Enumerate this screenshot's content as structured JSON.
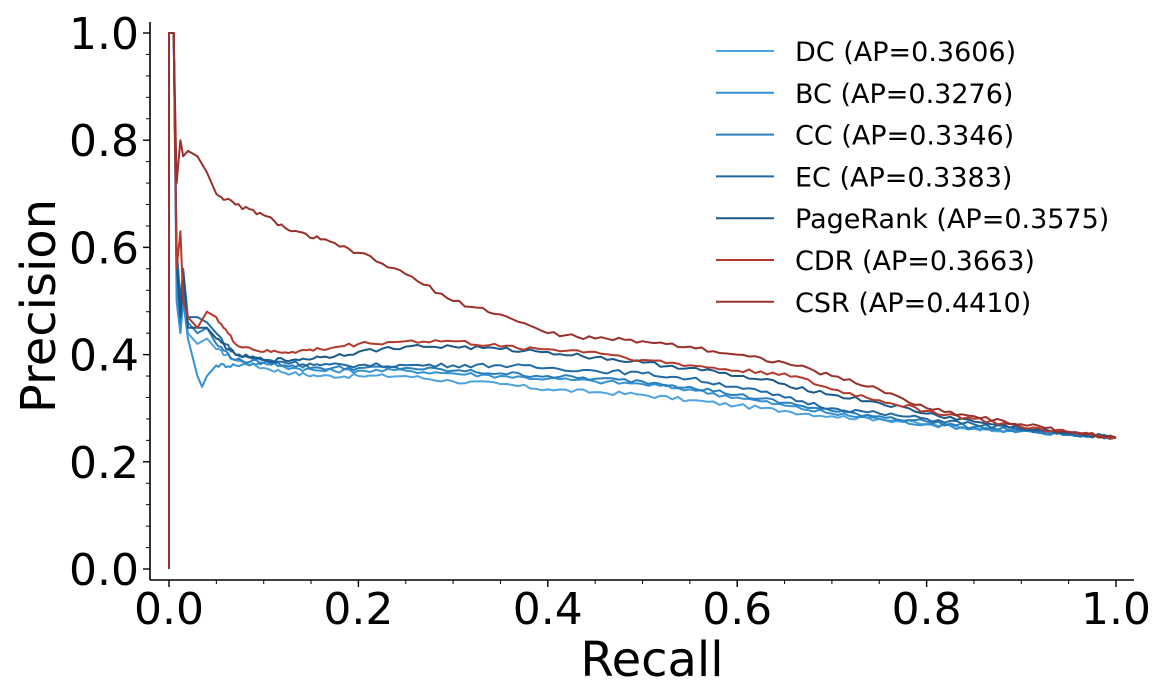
{
  "chart_data": {
    "type": "line",
    "title": "",
    "xlabel": "Recall",
    "ylabel": "Precision",
    "xlim": [
      0.0,
      1.0
    ],
    "ylim": [
      0.0,
      1.0
    ],
    "x_ticks": [
      "0.0",
      "0.2",
      "0.4",
      "0.6",
      "0.8",
      "1.0"
    ],
    "y_ticks": [
      "0.0",
      "0.2",
      "0.4",
      "0.6",
      "0.8",
      "1.0"
    ],
    "grid": false,
    "legend_position": "top-right",
    "series": [
      {
        "name": "DC (AP=0.3606)",
        "color": "#4fa3df",
        "points": [
          [
            0.0,
            0.0
          ],
          [
            0.0,
            1.0
          ],
          [
            0.005,
            1.0
          ],
          [
            0.008,
            0.55
          ],
          [
            0.012,
            0.45
          ],
          [
            0.015,
            0.52
          ],
          [
            0.02,
            0.44
          ],
          [
            0.03,
            0.42
          ],
          [
            0.04,
            0.43
          ],
          [
            0.05,
            0.41
          ],
          [
            0.07,
            0.39
          ],
          [
            0.1,
            0.375
          ],
          [
            0.13,
            0.365
          ],
          [
            0.16,
            0.36
          ],
          [
            0.2,
            0.36
          ],
          [
            0.25,
            0.36
          ],
          [
            0.3,
            0.35
          ],
          [
            0.35,
            0.345
          ],
          [
            0.4,
            0.335
          ],
          [
            0.45,
            0.33
          ],
          [
            0.5,
            0.325
          ],
          [
            0.55,
            0.315
          ],
          [
            0.6,
            0.305
          ],
          [
            0.65,
            0.295
          ],
          [
            0.7,
            0.285
          ],
          [
            0.75,
            0.28
          ],
          [
            0.8,
            0.27
          ],
          [
            0.85,
            0.263
          ],
          [
            0.9,
            0.258
          ],
          [
            0.95,
            0.252
          ],
          [
            1.0,
            0.245
          ]
        ]
      },
      {
        "name": "BC (AP=0.3276)",
        "color": "#3392d3",
        "points": [
          [
            0.0,
            0.0
          ],
          [
            0.0,
            1.0
          ],
          [
            0.005,
            1.0
          ],
          [
            0.008,
            0.5
          ],
          [
            0.012,
            0.44
          ],
          [
            0.015,
            0.5
          ],
          [
            0.02,
            0.43
          ],
          [
            0.03,
            0.36
          ],
          [
            0.035,
            0.34
          ],
          [
            0.04,
            0.36
          ],
          [
            0.05,
            0.38
          ],
          [
            0.07,
            0.38
          ],
          [
            0.1,
            0.385
          ],
          [
            0.13,
            0.375
          ],
          [
            0.16,
            0.37
          ],
          [
            0.2,
            0.37
          ],
          [
            0.25,
            0.37
          ],
          [
            0.3,
            0.365
          ],
          [
            0.35,
            0.36
          ],
          [
            0.4,
            0.355
          ],
          [
            0.45,
            0.35
          ],
          [
            0.5,
            0.345
          ],
          [
            0.55,
            0.335
          ],
          [
            0.6,
            0.32
          ],
          [
            0.65,
            0.305
          ],
          [
            0.7,
            0.29
          ],
          [
            0.75,
            0.28
          ],
          [
            0.8,
            0.27
          ],
          [
            0.85,
            0.262
          ],
          [
            0.9,
            0.257
          ],
          [
            0.95,
            0.25
          ],
          [
            1.0,
            0.245
          ]
        ]
      },
      {
        "name": "CC (AP=0.3346)",
        "color": "#2a7fbf",
        "points": [
          [
            0.0,
            0.0
          ],
          [
            0.0,
            1.0
          ],
          [
            0.005,
            1.0
          ],
          [
            0.008,
            0.56
          ],
          [
            0.012,
            0.46
          ],
          [
            0.015,
            0.54
          ],
          [
            0.02,
            0.46
          ],
          [
            0.03,
            0.44
          ],
          [
            0.04,
            0.45
          ],
          [
            0.05,
            0.42
          ],
          [
            0.07,
            0.39
          ],
          [
            0.1,
            0.385
          ],
          [
            0.13,
            0.38
          ],
          [
            0.16,
            0.375
          ],
          [
            0.2,
            0.375
          ],
          [
            0.25,
            0.375
          ],
          [
            0.3,
            0.37
          ],
          [
            0.35,
            0.365
          ],
          [
            0.4,
            0.36
          ],
          [
            0.45,
            0.355
          ],
          [
            0.5,
            0.35
          ],
          [
            0.55,
            0.34
          ],
          [
            0.6,
            0.325
          ],
          [
            0.65,
            0.31
          ],
          [
            0.7,
            0.295
          ],
          [
            0.75,
            0.285
          ],
          [
            0.8,
            0.275
          ],
          [
            0.85,
            0.265
          ],
          [
            0.9,
            0.258
          ],
          [
            0.95,
            0.25
          ],
          [
            1.0,
            0.245
          ]
        ]
      },
      {
        "name": "EC (AP=0.3383)",
        "color": "#216aa6",
        "points": [
          [
            0.0,
            0.0
          ],
          [
            0.0,
            1.0
          ],
          [
            0.005,
            1.0
          ],
          [
            0.008,
            0.6
          ],
          [
            0.012,
            0.5
          ],
          [
            0.015,
            0.56
          ],
          [
            0.02,
            0.47
          ],
          [
            0.03,
            0.47
          ],
          [
            0.04,
            0.46
          ],
          [
            0.05,
            0.44
          ],
          [
            0.07,
            0.4
          ],
          [
            0.1,
            0.39
          ],
          [
            0.13,
            0.385
          ],
          [
            0.16,
            0.38
          ],
          [
            0.2,
            0.38
          ],
          [
            0.25,
            0.38
          ],
          [
            0.3,
            0.38
          ],
          [
            0.35,
            0.38
          ],
          [
            0.4,
            0.375
          ],
          [
            0.45,
            0.37
          ],
          [
            0.5,
            0.365
          ],
          [
            0.55,
            0.355
          ],
          [
            0.6,
            0.34
          ],
          [
            0.65,
            0.32
          ],
          [
            0.7,
            0.3
          ],
          [
            0.75,
            0.29
          ],
          [
            0.8,
            0.28
          ],
          [
            0.85,
            0.27
          ],
          [
            0.9,
            0.26
          ],
          [
            0.95,
            0.252
          ],
          [
            1.0,
            0.245
          ]
        ]
      },
      {
        "name": "PageRank (AP=0.3575)",
        "color": "#1a5a8a",
        "points": [
          [
            0.0,
            0.0
          ],
          [
            0.0,
            1.0
          ],
          [
            0.005,
            1.0
          ],
          [
            0.008,
            0.58
          ],
          [
            0.012,
            0.47
          ],
          [
            0.015,
            0.55
          ],
          [
            0.02,
            0.45
          ],
          [
            0.03,
            0.45
          ],
          [
            0.04,
            0.45
          ],
          [
            0.05,
            0.43
          ],
          [
            0.07,
            0.4
          ],
          [
            0.1,
            0.39
          ],
          [
            0.13,
            0.39
          ],
          [
            0.16,
            0.395
          ],
          [
            0.2,
            0.405
          ],
          [
            0.25,
            0.415
          ],
          [
            0.3,
            0.415
          ],
          [
            0.35,
            0.41
          ],
          [
            0.4,
            0.405
          ],
          [
            0.45,
            0.395
          ],
          [
            0.5,
            0.385
          ],
          [
            0.55,
            0.375
          ],
          [
            0.6,
            0.36
          ],
          [
            0.65,
            0.345
          ],
          [
            0.7,
            0.325
          ],
          [
            0.75,
            0.31
          ],
          [
            0.8,
            0.29
          ],
          [
            0.85,
            0.275
          ],
          [
            0.9,
            0.263
          ],
          [
            0.95,
            0.253
          ],
          [
            1.0,
            0.245
          ]
        ]
      },
      {
        "name": "CDR (AP=0.3663)",
        "color": "#b33a2c",
        "points": [
          [
            0.0,
            0.0
          ],
          [
            0.0,
            1.0
          ],
          [
            0.005,
            1.0
          ],
          [
            0.008,
            0.56
          ],
          [
            0.012,
            0.63
          ],
          [
            0.015,
            0.5
          ],
          [
            0.02,
            0.47
          ],
          [
            0.03,
            0.45
          ],
          [
            0.04,
            0.48
          ],
          [
            0.05,
            0.47
          ],
          [
            0.07,
            0.42
          ],
          [
            0.1,
            0.405
          ],
          [
            0.13,
            0.405
          ],
          [
            0.16,
            0.41
          ],
          [
            0.2,
            0.42
          ],
          [
            0.25,
            0.425
          ],
          [
            0.3,
            0.425
          ],
          [
            0.35,
            0.415
          ],
          [
            0.4,
            0.41
          ],
          [
            0.45,
            0.405
          ],
          [
            0.5,
            0.39
          ],
          [
            0.55,
            0.38
          ],
          [
            0.6,
            0.37
          ],
          [
            0.65,
            0.365
          ],
          [
            0.7,
            0.335
          ],
          [
            0.75,
            0.315
          ],
          [
            0.8,
            0.295
          ],
          [
            0.85,
            0.28
          ],
          [
            0.9,
            0.265
          ],
          [
            0.95,
            0.255
          ],
          [
            1.0,
            0.245
          ]
        ]
      },
      {
        "name": "CSR (AP=0.4410)",
        "color": "#99302a",
        "points": [
          [
            0.0,
            0.0
          ],
          [
            0.0,
            1.0
          ],
          [
            0.005,
            1.0
          ],
          [
            0.008,
            0.72
          ],
          [
            0.012,
            0.8
          ],
          [
            0.015,
            0.77
          ],
          [
            0.02,
            0.78
          ],
          [
            0.03,
            0.77
          ],
          [
            0.04,
            0.74
          ],
          [
            0.05,
            0.7
          ],
          [
            0.07,
            0.68
          ],
          [
            0.1,
            0.66
          ],
          [
            0.13,
            0.63
          ],
          [
            0.16,
            0.615
          ],
          [
            0.2,
            0.59
          ],
          [
            0.25,
            0.55
          ],
          [
            0.3,
            0.5
          ],
          [
            0.35,
            0.475
          ],
          [
            0.4,
            0.44
          ],
          [
            0.45,
            0.43
          ],
          [
            0.5,
            0.425
          ],
          [
            0.55,
            0.415
          ],
          [
            0.6,
            0.4
          ],
          [
            0.65,
            0.385
          ],
          [
            0.7,
            0.36
          ],
          [
            0.75,
            0.335
          ],
          [
            0.8,
            0.3
          ],
          [
            0.85,
            0.285
          ],
          [
            0.9,
            0.27
          ],
          [
            0.95,
            0.256
          ],
          [
            1.0,
            0.245
          ]
        ]
      }
    ]
  }
}
